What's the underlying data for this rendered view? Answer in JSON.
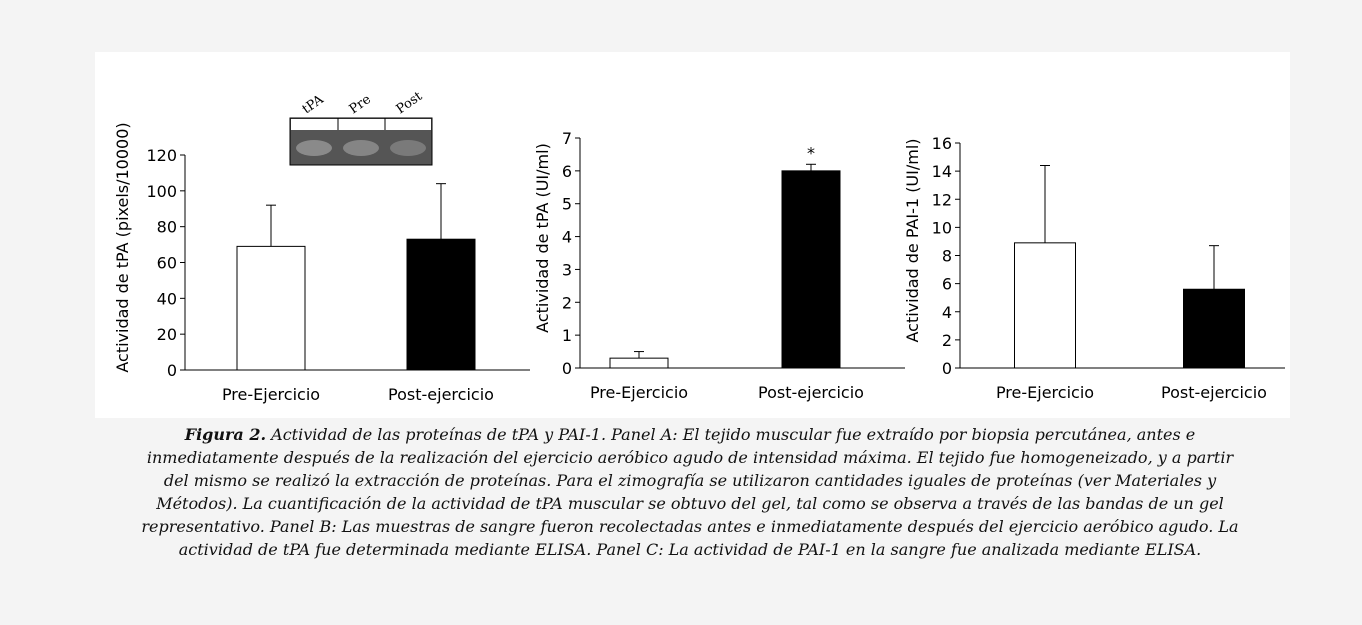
{
  "chart_data": [
    {
      "type": "bar",
      "y_label": "Actividad de tPA (pixels/10000)",
      "categories": [
        "Pre-Ejercicio",
        "Post-ejercicio"
      ],
      "values": [
        69,
        73
      ],
      "errors": [
        23,
        31
      ],
      "colors": [
        "#ffffff",
        "#000000"
      ],
      "ylim": [
        0,
        120
      ],
      "yticks": [
        0,
        20,
        40,
        60,
        80,
        100,
        120
      ],
      "inset_labels": [
        "tPA",
        "Pre",
        "Post"
      ]
    },
    {
      "type": "bar",
      "y_label": "Actividad de tPA (UI/ml)",
      "categories": [
        "Pre-Ejercicio",
        "Post-ejercicio"
      ],
      "values": [
        0.3,
        6.0
      ],
      "errors": [
        0.2,
        0.2
      ],
      "colors": [
        "#ffffff",
        "#000000"
      ],
      "ylim": [
        0,
        7
      ],
      "yticks": [
        0,
        1,
        2,
        3,
        4,
        5,
        6,
        7
      ],
      "annotation": "*"
    },
    {
      "type": "bar",
      "y_label": "Actividad de PAI-1 (UI/ml)",
      "categories": [
        "Pre-Ejercicio",
        "Post-ejercicio"
      ],
      "values": [
        8.9,
        5.6
      ],
      "errors": [
        5.5,
        3.1
      ],
      "colors": [
        "#ffffff",
        "#000000"
      ],
      "ylim": [
        0,
        16
      ],
      "yticks": [
        0,
        2,
        4,
        6,
        8,
        10,
        12,
        14,
        16
      ]
    }
  ],
  "caption": {
    "label": "Figura 2.",
    "lines": [
      "Actividad de las proteínas de tPA y PAI-1. Panel A: El tejido muscular fue extraído por biopsia percutánea, antes e",
      "inmediatamente después de la realización del ejercicio aeróbico agudo de intensidad máxima. El tejido fue homogeneizado, y a partir",
      "del mismo se realizó la extracción de proteínas. Para el zimografía se utilizaron cantidades iguales de proteínas (ver Materiales y",
      "Métodos). La cuantificación de la actividad de tPA muscular se obtuvo del gel, tal como se observa a través de las bandas de un gel",
      "representativo. Panel B: Las muestras de sangre fueron recolectadas antes e inmediatamente después del ejercicio aeróbico agudo. La",
      "actividad de tPA fue determinada mediante ELISA. Panel C: La actividad de PAI-1 en la sangre fue analizada mediante ELISA."
    ]
  }
}
